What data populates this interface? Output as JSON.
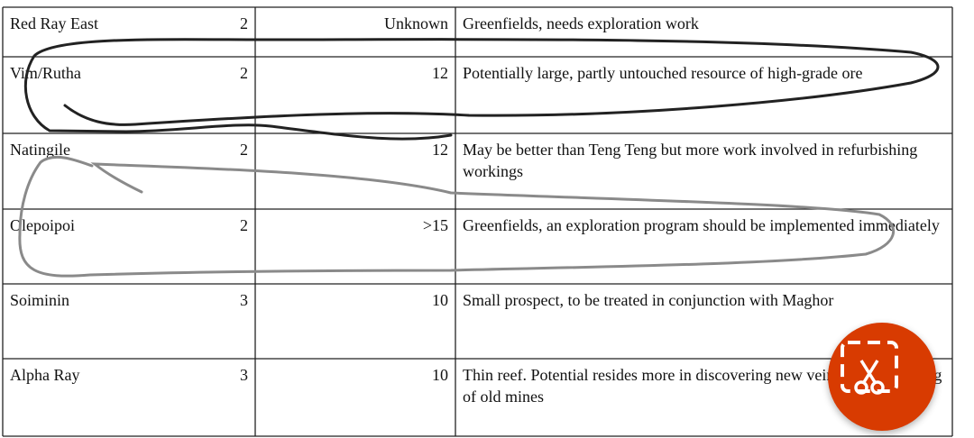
{
  "table": {
    "rows": [
      [
        "Red Ray East",
        2,
        "Unknown",
        "Greenfields, needs exploration work"
      ],
      [
        "Vim/Rutha",
        2,
        12,
        "Potentially large, partly untouched resource of high-grade ore"
      ],
      [
        "Natingile",
        2,
        12,
        "May be better than Teng Teng but more work involved in refurbishing workings"
      ],
      [
        "Olepoipoi",
        2,
        ">15",
        "Greenfields, an exploration program should be implemented immediately"
      ],
      [
        "Soiminin",
        3,
        10,
        "Small prospect, to be treated in conjunction with Maghor"
      ],
      [
        "Alpha Ray",
        3,
        10,
        "Thin reef. Potential resides more in discovering new veins than reopening of old mines"
      ]
    ]
  }
}
